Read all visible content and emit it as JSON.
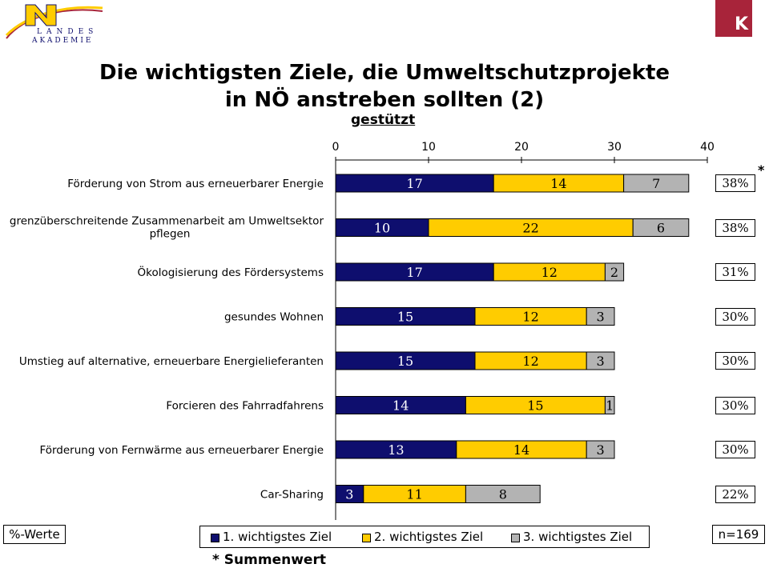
{
  "header": {
    "logo_left_text": "LANDES AKADEMIE",
    "logo_right_letter": "K",
    "title_line1": "Die wichtigsten Ziele, die Umweltschutzprojekte",
    "title_line2": "in NÖ anstreben sollten (2)",
    "subtitle": "gestützt"
  },
  "colors": {
    "s1": "#0e0e6e",
    "s2": "#ffcc00",
    "s3": "#b3b3b3",
    "brand": "#a8243a"
  },
  "chart_data": {
    "type": "bar",
    "orientation": "horizontal",
    "stacked": true,
    "xlim": [
      0,
      40
    ],
    "xticks": [
      0,
      10,
      20,
      30,
      40
    ],
    "categories": [
      [
        "Förderung von Strom aus erneuerbarer Energie"
      ],
      [
        "grenzüberschreitende Zusammenarbeit am Umweltsektor",
        "pflegen"
      ],
      [
        "Ökologisierung des Fördersystems"
      ],
      [
        "gesundes Wohnen"
      ],
      [
        "Umstieg auf alternative, erneuerbare Energielieferanten"
      ],
      [
        "Forcieren des Fahrradfahrens"
      ],
      [
        "Förderung von Fernwärme aus erneuerbarer Energie"
      ],
      [
        "Car-Sharing"
      ]
    ],
    "series": [
      {
        "name": "1. wichtigstes Ziel",
        "values": [
          17,
          10,
          17,
          15,
          15,
          14,
          13,
          3
        ]
      },
      {
        "name": "2. wichtigstes Ziel",
        "values": [
          14,
          22,
          12,
          12,
          12,
          15,
          14,
          11
        ]
      },
      {
        "name": "3. wichtigstes Ziel",
        "values": [
          7,
          6,
          2,
          3,
          3,
          1,
          3,
          8
        ]
      }
    ],
    "totals": [
      "38%",
      "38%",
      "31%",
      "30%",
      "30%",
      "30%",
      "30%",
      "22%"
    ],
    "legend_position": "bottom",
    "grid": false
  },
  "footer": {
    "unit_label": "%-Werte",
    "sample_label": "n=169",
    "asterisk": "*",
    "note": "* Summenwert"
  }
}
